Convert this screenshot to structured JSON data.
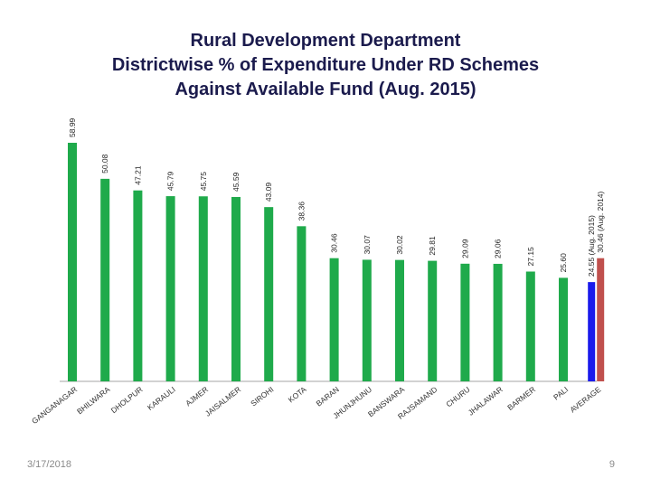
{
  "chart_data": {
    "type": "bar",
    "title": [
      "Rural Development Department",
      "Districtwise % of Expenditure Under RD Schemes",
      "Against Available Fund (Aug. 2015)"
    ],
    "categories": [
      "GANGANAGAR",
      "BHILWARA",
      "DHOLPUR",
      "KARAULI",
      "AJMER",
      "JAISALMER",
      "SIROHI",
      "KOTA",
      "BARAN",
      "JHUNJHUNU",
      "BANSWARA",
      "RAJSAMAND",
      "CHURU",
      "JHALAWAR",
      "BARMER",
      "PALI",
      "AVERAGE"
    ],
    "series": [
      {
        "name": "",
        "values": [
          58.99,
          50.08,
          47.21,
          45.79,
          45.75,
          45.59,
          43.09,
          38.36,
          30.46,
          30.07,
          30.02,
          29.81,
          29.09,
          29.06,
          27.15,
          25.6,
          24.55
        ],
        "labels": [
          "58.99",
          "50.08",
          "47.21",
          "45.79",
          "45.75",
          "45.59",
          "43.09",
          "38.36",
          "30.46",
          "30.07",
          "30.02",
          "29.81",
          "29.09",
          "29.06",
          "27.15",
          "25.60",
          "24.55 (Aug. 2015)"
        ]
      },
      {
        "name": "",
        "values": [
          null,
          null,
          null,
          null,
          null,
          null,
          null,
          null,
          null,
          null,
          null,
          null,
          null,
          null,
          null,
          null,
          30.46
        ],
        "labels": [
          null,
          null,
          null,
          null,
          null,
          null,
          null,
          null,
          null,
          null,
          null,
          null,
          null,
          null,
          null,
          null,
          "30.46 (Aug. 2014)"
        ]
      }
    ],
    "ylim": [
      0,
      60
    ],
    "colors": {
      "bar": "#1faa4b",
      "average_2015": "#1a1aeb",
      "average_2014": "#c0504d",
      "axis": "#a6a6a6"
    }
  },
  "footer": {
    "date": "3/17/2018",
    "page": "9"
  }
}
